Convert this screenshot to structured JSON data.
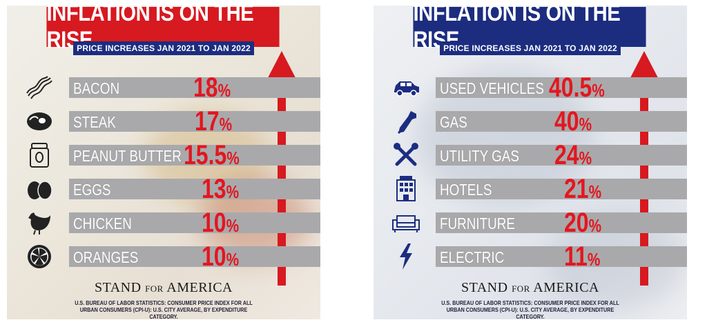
{
  "chart_data": [
    {
      "type": "bar",
      "title": "INFLATION IS ON THE RISE",
      "subtitle": "PRICE INCREASES JAN 2021 TO JAN 2022",
      "categories": [
        "BACON",
        "STEAK",
        "PEANUT BUTTER",
        "EGGS",
        "CHICKEN",
        "ORANGES"
      ],
      "values": [
        18,
        17,
        15.5,
        13,
        10,
        10
      ],
      "value_labels": [
        "18",
        "17",
        "15.5",
        "13",
        "10",
        "10"
      ],
      "unit": "%",
      "icons": [
        "bacon-icon",
        "steak-icon",
        "peanut-butter-jar-icon",
        "eggs-icon",
        "chicken-icon",
        "orange-slice-icon"
      ],
      "header_color": "#d71920"
    },
    {
      "type": "bar",
      "title": "INFLATION IS ON THE RISE",
      "subtitle": "PRICE INCREASES JAN 2021 TO JAN 2022",
      "categories": [
        "USED VEHICLES",
        "GAS",
        "UTILITY GAS",
        "HOTELS",
        "FURNITURE",
        "ELECTRIC"
      ],
      "values": [
        40.5,
        40,
        24,
        21,
        20,
        11
      ],
      "value_labels": [
        "40.5",
        "40",
        "24",
        "21",
        "20",
        "11"
      ],
      "unit": "%",
      "icons": [
        "car-icon",
        "gas-pump-icon",
        "wrench-screwdriver-icon",
        "hotel-icon",
        "sofa-icon",
        "lightning-bolt-icon"
      ],
      "header_color": "#1c2d80"
    }
  ],
  "branding": {
    "logo_stand": "STAND",
    "logo_for": "FOR",
    "logo_america": "AMERICA",
    "source": "U.S. BUREAU OF LABOR STATISTICS: CONSUMER PRICE INDEX FOR ALL URBAN CONSUMERS (CPI-U): U.S. CITY AVERAGE, BY EXPENDITURE CATEGORY."
  },
  "colors": {
    "value_red": "#e3161f",
    "bar_gray": "#a9a9ab",
    "navy": "#1c2d80",
    "arrow_red": "#d71920"
  }
}
